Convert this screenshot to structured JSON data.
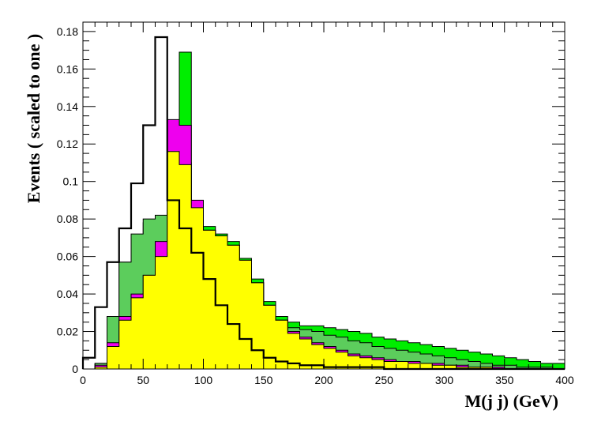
{
  "chart_data": {
    "type": "area",
    "title": "",
    "xlabel": "M(j j) (GeV)",
    "ylabel": "Events  ( scaled to one )",
    "xlim": [
      0,
      400
    ],
    "ylim": [
      0,
      0.185
    ],
    "xticks": [
      "0",
      "50",
      "100",
      "150",
      "200",
      "250",
      "300",
      "350",
      "400"
    ],
    "yticks": [
      "0",
      "0.02",
      "0.04",
      "0.06",
      "0.08",
      "0.1",
      "0.12",
      "0.14",
      "0.16",
      "0.18"
    ],
    "grid": false,
    "legend": "none",
    "bin_edges": [
      0,
      10,
      20,
      30,
      40,
      50,
      60,
      70,
      80,
      90,
      100,
      110,
      120,
      130,
      140,
      150,
      160,
      170,
      180,
      190,
      200,
      210,
      220,
      230,
      240,
      250,
      260,
      270,
      280,
      290,
      300,
      310,
      320,
      330,
      340,
      350,
      360,
      370,
      380,
      390,
      400
    ],
    "series": [
      {
        "style": "filled",
        "color": "#00ee00",
        "values": [
          0.0,
          0.003,
          0.028,
          0.057,
          0.06,
          0.078,
          0.08,
          0.128,
          0.169,
          0.088,
          0.076,
          0.072,
          0.068,
          0.059,
          0.048,
          0.036,
          0.028,
          0.025,
          0.023,
          0.023,
          0.022,
          0.021,
          0.02,
          0.019,
          0.017,
          0.016,
          0.015,
          0.014,
          0.013,
          0.012,
          0.011,
          0.01,
          0.009,
          0.008,
          0.007,
          0.006,
          0.005,
          0.004,
          0.003,
          0.003
        ]
      },
      {
        "style": "filled",
        "color": "#5ccd5c",
        "values": [
          0.0,
          0.003,
          0.028,
          0.057,
          0.072,
          0.08,
          0.082,
          0.118,
          0.11,
          0.082,
          0.074,
          0.07,
          0.066,
          0.058,
          0.046,
          0.034,
          0.026,
          0.022,
          0.021,
          0.02,
          0.018,
          0.017,
          0.015,
          0.014,
          0.012,
          0.011,
          0.01,
          0.009,
          0.008,
          0.007,
          0.006,
          0.005,
          0.004,
          0.003,
          0.002,
          0.002,
          0.001,
          0.001,
          0.001,
          0.0
        ]
      },
      {
        "style": "filled",
        "color": "#ee00ee",
        "values": [
          0.0,
          0.002,
          0.014,
          0.028,
          0.04,
          0.05,
          0.068,
          0.133,
          0.13,
          0.09,
          0.074,
          0.071,
          0.066,
          0.058,
          0.046,
          0.034,
          0.026,
          0.02,
          0.017,
          0.014,
          0.012,
          0.01,
          0.008,
          0.007,
          0.006,
          0.005,
          0.004,
          0.004,
          0.003,
          0.003,
          0.002,
          0.002,
          0.001,
          0.001,
          0.001,
          0.0,
          0.0,
          0.0,
          0.0,
          0.0
        ]
      },
      {
        "style": "filled",
        "color": "#ffff00",
        "values": [
          0.0,
          0.001,
          0.012,
          0.026,
          0.038,
          0.05,
          0.06,
          0.116,
          0.109,
          0.086,
          0.074,
          0.071,
          0.066,
          0.058,
          0.046,
          0.034,
          0.026,
          0.019,
          0.016,
          0.013,
          0.011,
          0.009,
          0.007,
          0.006,
          0.005,
          0.004,
          0.004,
          0.003,
          0.003,
          0.002,
          0.002,
          0.001,
          0.001,
          0.001,
          0.0,
          0.0,
          0.0,
          0.0,
          0.0,
          0.0
        ]
      },
      {
        "style": "line",
        "color": "#000000",
        "values": [
          0.006,
          0.033,
          0.057,
          0.075,
          0.099,
          0.13,
          0.177,
          0.09,
          0.075,
          0.062,
          0.048,
          0.034,
          0.024,
          0.016,
          0.01,
          0.006,
          0.004,
          0.003,
          0.002,
          0.002,
          0.001,
          0.001,
          0.001,
          0.001,
          0.001,
          0.0,
          0.0,
          0.0,
          0.0,
          0.0,
          0.0,
          0.0,
          0.0,
          0.0,
          0.0,
          0.0,
          0.0,
          0.0,
          0.0,
          0.0
        ]
      }
    ]
  }
}
